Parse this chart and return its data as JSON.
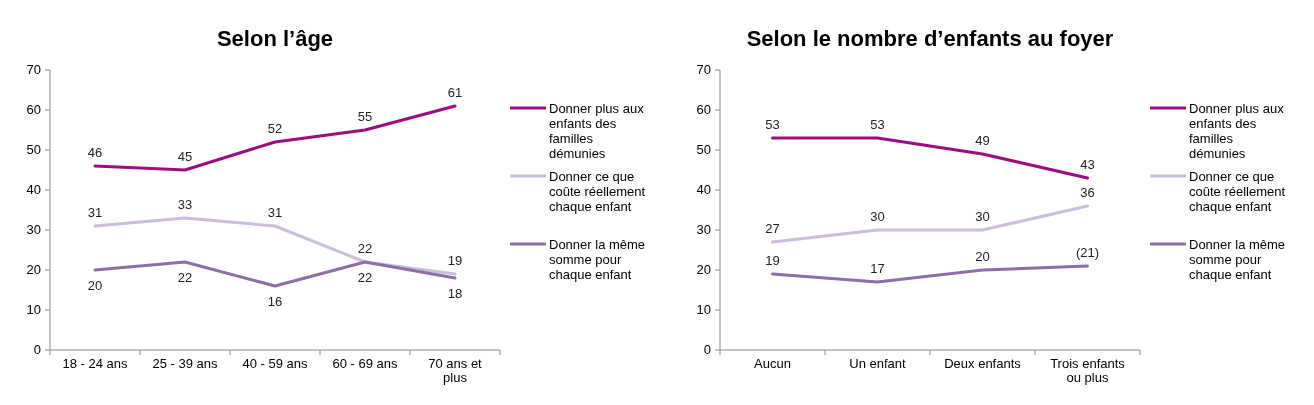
{
  "chart_data": [
    {
      "type": "line",
      "title": "Selon l’âge",
      "categories": [
        "18 - 24 ans",
        "25 - 39 ans",
        "40 - 59 ans",
        "60 - 69 ans",
        "70 ans et plus"
      ],
      "ylim": [
        0,
        70
      ],
      "yticks": [
        0,
        10,
        20,
        30,
        40,
        50,
        60,
        70
      ],
      "legend": "right",
      "grid": false,
      "series": [
        {
          "name": "Donner plus aux enfants des familles démunies",
          "color": "#9c0e7f",
          "values": [
            46,
            45,
            52,
            55,
            61
          ],
          "value_labels": [
            "46",
            "45",
            "52",
            "55",
            "61"
          ]
        },
        {
          "name": "Donner ce que coûte réellement chaque enfant",
          "color": "#cbbdd9",
          "values": [
            31,
            33,
            31,
            22,
            19
          ],
          "value_labels": [
            "31",
            "33",
            "31",
            "22",
            "19"
          ]
        },
        {
          "name": "Donner la même somme pour chaque enfant",
          "color": "#8c6ea6",
          "values": [
            20,
            22,
            16,
            22,
            18
          ],
          "value_labels": [
            "20",
            "22",
            "16",
            "22",
            "18"
          ]
        }
      ]
    },
    {
      "type": "line",
      "title": "Selon le nombre d’enfants au foyer",
      "categories": [
        "Aucun",
        "Un enfant",
        "Deux enfants",
        "Trois enfants ou plus"
      ],
      "ylim": [
        0,
        70
      ],
      "yticks": [
        0,
        10,
        20,
        30,
        40,
        50,
        60,
        70
      ],
      "legend": "right",
      "grid": false,
      "series": [
        {
          "name": "Donner plus aux enfants des familles démunies",
          "color": "#9c0e7f",
          "values": [
            53,
            53,
            49,
            43
          ],
          "value_labels": [
            "53",
            "53",
            "49",
            "43"
          ]
        },
        {
          "name": "Donner ce que coûte réellement chaque enfant",
          "color": "#cbbdd9",
          "values": [
            27,
            30,
            30,
            36
          ],
          "value_labels": [
            "27",
            "30",
            "30",
            "36"
          ]
        },
        {
          "name": "Donner la même somme pour chaque enfant",
          "color": "#8c6ea6",
          "values": [
            19,
            17,
            20,
            21
          ],
          "value_labels": [
            "19",
            "17",
            "20",
            "(21)"
          ]
        }
      ]
    }
  ]
}
